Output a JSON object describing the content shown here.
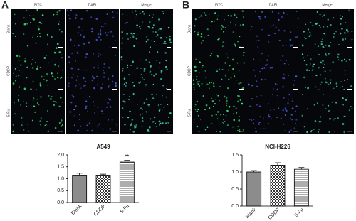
{
  "panels": [
    {
      "letter": "A",
      "columns": [
        "FITC",
        "DAPI",
        "Merge"
      ],
      "rows": [
        "Blank",
        "CDDP",
        "5-Fu"
      ]
    },
    {
      "letter": "B",
      "columns": [
        "FITC",
        "DAPI",
        "Merge"
      ],
      "rows": [
        "Blank",
        "CDDP",
        "5-Fu"
      ]
    }
  ],
  "chart_data": [
    {
      "type": "bar",
      "title": "A549",
      "categories": [
        "Blank",
        "CDDP",
        "5-Fu"
      ],
      "values": [
        1.15,
        1.15,
        1.7
      ],
      "errors": [
        0.08,
        0.04,
        0.07
      ],
      "patterns": [
        "solid",
        "checker",
        "hlines"
      ],
      "annotations": [
        {
          "text": "**",
          "x": "5-Fu"
        }
      ],
      "ylim": [
        0,
        2
      ],
      "yticks": [
        {
          "value": 0,
          "label": "0.0"
        },
        0.5,
        {
          "value": 1,
          "label": "1.0"
        },
        1.5,
        {
          "value": 2,
          "label": "2.0"
        }
      ]
    },
    {
      "type": "bar",
      "title": "NCI-H226",
      "categories": [
        "Blank",
        "CDDP",
        "5-Fu"
      ],
      "values": [
        1.0,
        1.2,
        1.08
      ],
      "errors": [
        0.04,
        0.07,
        0.05
      ],
      "patterns": [
        "solid",
        "checker",
        "hlines"
      ],
      "ylim": [
        0,
        1.5
      ],
      "yticks": [
        {
          "value": 0,
          "label": "0.0"
        },
        0.5,
        {
          "value": 1,
          "label": "1.0"
        },
        1.5
      ]
    }
  ]
}
